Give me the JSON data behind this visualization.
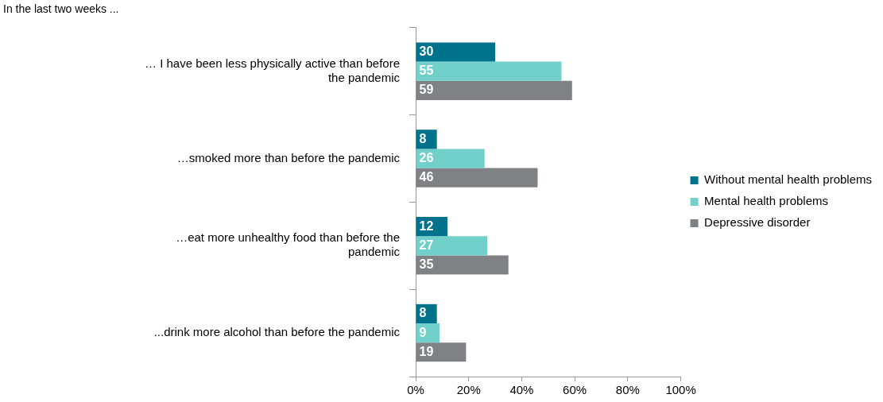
{
  "chart_data": {
    "type": "bar",
    "orientation": "horizontal",
    "title": "In the last two weeks ...",
    "categories": [
      "… I have been less physically active than before the pandemic",
      "…smoked more than before the pandemic",
      "…eat more unhealthy food than before the pandemic",
      "...drink more alcohol than before the pandemic"
    ],
    "series": [
      {
        "name": "Without mental health problems",
        "color": "#00728c",
        "values": [
          30,
          8,
          12,
          8
        ]
      },
      {
        "name": "Mental health problems",
        "color": "#72d0cb",
        "values": [
          55,
          26,
          27,
          9
        ]
      },
      {
        "name": "Depressive disorder",
        "color": "#808184",
        "values": [
          59,
          46,
          35,
          19
        ]
      }
    ],
    "xlim": [
      0,
      100
    ],
    "xticks": [
      {
        "value": 0,
        "label": "0%"
      },
      {
        "value": 20,
        "label": "20%"
      },
      {
        "value": 40,
        "label": "40%"
      },
      {
        "value": 60,
        "label": "60%"
      },
      {
        "value": 80,
        "label": "80%"
      },
      {
        "value": 100,
        "label": "100%"
      }
    ],
    "grid": false,
    "legend": "right",
    "data_labels": true
  }
}
